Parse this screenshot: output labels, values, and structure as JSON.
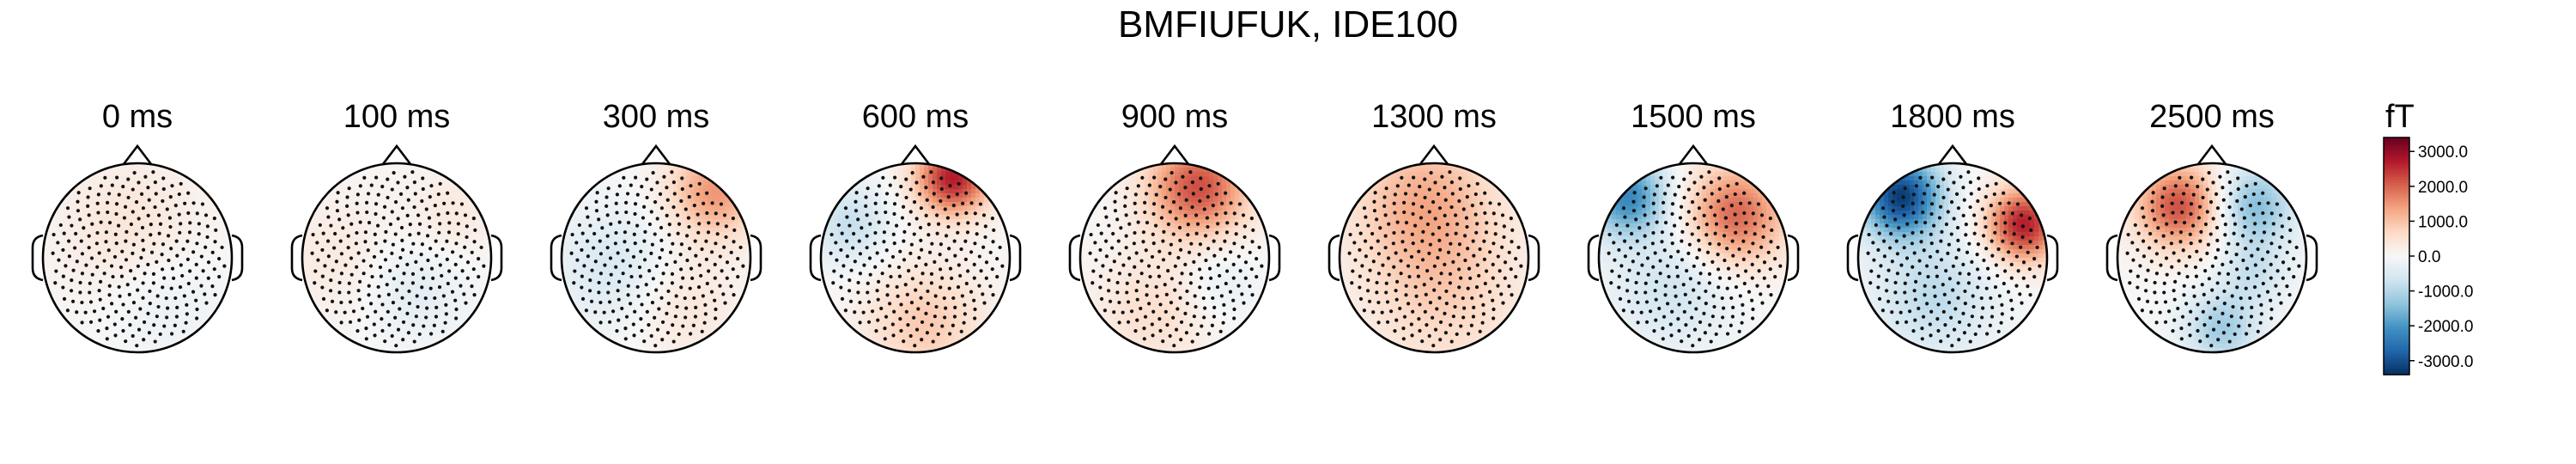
{
  "chart_data": {
    "type": "heatmap",
    "title": "BMFIUFUK, IDE100",
    "panels": [
      {
        "label": "0 ms",
        "fields": [
          {
            "x": -0.05,
            "y": 0.25,
            "v": 500,
            "s": 0.55
          },
          {
            "x": 0.25,
            "y": -0.35,
            "v": -350,
            "s": 0.45
          }
        ]
      },
      {
        "label": "100 ms",
        "fields": [
          {
            "x": -0.55,
            "y": 0.0,
            "v": 350,
            "s": 0.5
          },
          {
            "x": 0.15,
            "y": -0.3,
            "v": -450,
            "s": 0.4
          },
          {
            "x": 0.6,
            "y": 0.45,
            "v": 350,
            "s": 0.35
          }
        ]
      },
      {
        "label": "300 ms",
        "fields": [
          {
            "x": 0.62,
            "y": 0.7,
            "v": 1500,
            "s": 0.35
          },
          {
            "x": -0.45,
            "y": -0.1,
            "v": -550,
            "s": 0.45
          },
          {
            "x": 0.3,
            "y": -0.5,
            "v": 450,
            "s": 0.4
          }
        ]
      },
      {
        "label": "600 ms",
        "fields": [
          {
            "x": 0.4,
            "y": 0.85,
            "v": 2700,
            "s": 0.28
          },
          {
            "x": -0.7,
            "y": 0.35,
            "v": -800,
            "s": 0.3
          },
          {
            "x": 0.1,
            "y": -0.7,
            "v": 900,
            "s": 0.45
          }
        ]
      },
      {
        "label": "900 ms",
        "fields": [
          {
            "x": 0.25,
            "y": 0.75,
            "v": 2200,
            "s": 0.38
          },
          {
            "x": -0.2,
            "y": -0.55,
            "v": 600,
            "s": 0.45
          },
          {
            "x": 0.45,
            "y": -0.25,
            "v": -400,
            "s": 0.3
          }
        ]
      },
      {
        "label": "1300 ms",
        "fields": [
          {
            "x": -0.1,
            "y": 0.6,
            "v": 1200,
            "s": 0.55
          },
          {
            "x": 0.1,
            "y": -0.45,
            "v": 700,
            "s": 0.6
          }
        ]
      },
      {
        "label": "1500 ms",
        "fields": [
          {
            "x": -0.7,
            "y": 0.65,
            "v": -2200,
            "s": 0.3
          },
          {
            "x": 0.45,
            "y": 0.45,
            "v": 2000,
            "s": 0.38
          },
          {
            "x": -0.2,
            "y": -0.3,
            "v": -700,
            "s": 0.45
          }
        ]
      },
      {
        "label": "1800 ms",
        "fields": [
          {
            "x": -0.55,
            "y": 0.65,
            "v": -3200,
            "s": 0.3
          },
          {
            "x": 0.75,
            "y": 0.35,
            "v": 2700,
            "s": 0.28
          },
          {
            "x": -0.2,
            "y": -0.4,
            "v": -900,
            "s": 0.45
          }
        ]
      },
      {
        "label": "2500 ms",
        "fields": [
          {
            "x": -0.35,
            "y": 0.55,
            "v": 2200,
            "s": 0.32
          },
          {
            "x": 0.45,
            "y": 0.55,
            "v": -1500,
            "s": 0.3
          },
          {
            "x": 0.1,
            "y": -0.75,
            "v": -1200,
            "s": 0.28
          },
          {
            "x": 0.45,
            "y": -0.15,
            "v": -700,
            "s": 0.25
          }
        ]
      }
    ],
    "colorbar": {
      "unit": "fT",
      "range": [
        -3400,
        3400
      ],
      "ticks": [
        3000,
        2000,
        1000,
        0,
        -1000,
        -2000,
        -3000
      ],
      "tick_labels": [
        "3000.0",
        "2000.0",
        "1000.0",
        "0.0",
        "-1000.0",
        "-2000.0",
        "-3000.0"
      ],
      "colormap": "RdBu_r",
      "colors": {
        "negative_end": "#053061",
        "zero": "#f7f7f7",
        "positive_end": "#67001f"
      }
    }
  }
}
